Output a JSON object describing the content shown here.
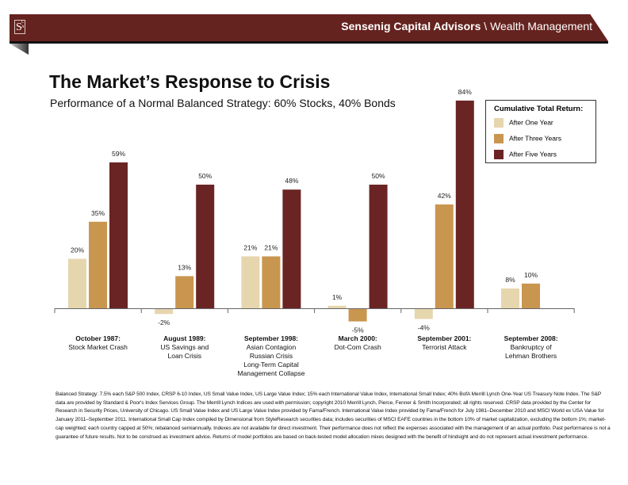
{
  "header": {
    "logo": "SCA",
    "brand_name": "Sensenig Capital Advisors",
    "separator": "\\",
    "division": "Wealth Management"
  },
  "chart_data": {
    "type": "bar",
    "title": "The Market’s Response to Crisis",
    "subtitle": "Performance of a Normal Balanced Strategy:  60% Stocks, 40% Bonds",
    "categories": [
      {
        "title": "October 1987:",
        "lines": [
          "Stock Market Crash"
        ]
      },
      {
        "title": "August 1989:",
        "lines": [
          "US Savings and",
          "Loan Crisis"
        ]
      },
      {
        "title": "September 1998:",
        "lines": [
          "Asian Contagion",
          "Russian Crisis",
          "Long-Term Capital",
          "Management Collapse"
        ]
      },
      {
        "title": "March 2000:",
        "lines": [
          "Dot-Com Crash"
        ]
      },
      {
        "title": "September 2001:",
        "lines": [
          "Terrorist Attack"
        ]
      },
      {
        "title": "September 2008:",
        "lines": [
          "Bankruptcy of",
          "Lehman Brothers"
        ]
      }
    ],
    "legend_title": "Cumulative Total Return:",
    "legend_placement": "top-right",
    "series": [
      {
        "name": "After One Year",
        "color": "#e6d6ae",
        "values": [
          20,
          -2,
          21,
          1,
          -4,
          8
        ],
        "labels": [
          "20%",
          "-2%",
          "21%",
          "1%",
          "-4%",
          "8%"
        ]
      },
      {
        "name": "After Three Years",
        "color": "#c9964f",
        "values": [
          35,
          13,
          21,
          -5,
          42,
          10
        ],
        "labels": [
          "35%",
          "13%",
          "21%",
          "-5%",
          "42%",
          "10%"
        ]
      },
      {
        "name": "After Five Years",
        "color": "#6b2424",
        "values": [
          59,
          50,
          48,
          50,
          84,
          null
        ],
        "labels": [
          "59%",
          "50%",
          "48%",
          "50%",
          "84%",
          ""
        ]
      }
    ]
  },
  "footnote": "Balanced Strategy: 7.5% each  S&P 500 Index, CRSP 6-10 Index, US Small Value Index, US Large Value Index; 15% each International Value Index, International Small Index; 40% BofA Merrill Lynch One-Year US Treasury Note Index. The S&P data are provided by Standard & Poor's Index Services Group. The Merrill Lynch Indices are used with permission; copyright 2010 Merrill Lynch, Pierce, Fenner & Smith Incorporated; all rights reserved. CRSP data provided by the Center for Research in Security Prices, University of Chicago. US Small Value Index and US Large Value Index provided by Fama/French. International  Value Index provided by Fama/French for July 1981–December 2010 and MSCI World ex USA Value for January 2011–September 2011. International Small Cap Index compiled by Dimensional from StyleResearch securities data; includes securities of MSCI EAFE countries in the bottom 10% of market capitalization, excluding the bottom 1%; market-cap weighted; each country capped at 50%; rebalanced semiannually. Indexes are not available for direct investment. Their performance does not reflect the expenses associated with the management of an actual portfolio. Past performance is not a guarantee of future results. Not to be construed as investment advice. Returns of model portfolios are based on back-tested model allocation mixes designed with the benefit of hindsight and do not represent actual investment performance."
}
